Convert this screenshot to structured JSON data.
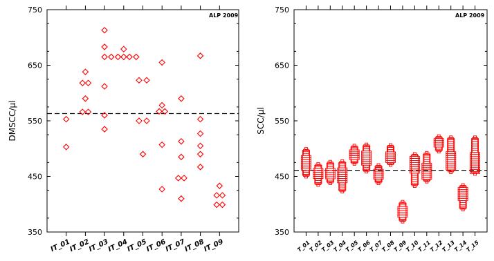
{
  "chart_data": [
    {
      "type": "scatter",
      "ylabel": "DMSCC/µl",
      "ylim": [
        350,
        750
      ],
      "yticks": [
        350,
        450,
        550,
        650,
        750
      ],
      "reference_line": 563,
      "annotation": "ALP 2009",
      "marker": "diamond",
      "color": "#ff0000",
      "categories": [
        "IT_01",
        "IT_02",
        "IT_03",
        "IT_04",
        "IT_05",
        "IT_06",
        "IT_07",
        "IT_08",
        "IT_09"
      ],
      "series": [
        {
          "category": "IT_01",
          "values": [
            [
              0,
              553
            ],
            [
              0,
              503
            ]
          ]
        },
        {
          "category": "IT_02",
          "values": [
            [
              -0.15,
              618
            ],
            [
              0,
              638
            ],
            [
              0.15,
              618
            ],
            [
              0,
              590
            ],
            [
              -0.15,
              566
            ],
            [
              0.15,
              566
            ]
          ]
        },
        {
          "category": "IT_03",
          "values": [
            [
              0,
              713
            ],
            [
              0,
              683
            ],
            [
              0,
              665
            ],
            [
              0.35,
              665
            ],
            [
              0,
              612
            ],
            [
              0,
              560
            ],
            [
              0,
              535
            ]
          ]
        },
        {
          "category": "IT_04",
          "values": [
            [
              -0.3,
              665
            ],
            [
              0,
              665
            ],
            [
              0.3,
              665
            ],
            [
              0,
              679
            ]
          ]
        },
        {
          "category": "IT_05",
          "values": [
            [
              -0.35,
              665
            ],
            [
              -0.2,
              623
            ],
            [
              0.2,
              623
            ],
            [
              -0.2,
              550
            ],
            [
              0.2,
              550
            ],
            [
              0,
              490
            ]
          ]
        },
        {
          "category": "IT_06",
          "values": [
            [
              0,
              655
            ],
            [
              0,
              578
            ],
            [
              -0.15,
              567
            ],
            [
              0.15,
              567
            ],
            [
              0,
              507
            ],
            [
              0,
              427
            ]
          ]
        },
        {
          "category": "IT_07",
          "values": [
            [
              0,
              590
            ],
            [
              0,
              513
            ],
            [
              0,
              485
            ],
            [
              -0.15,
              447
            ],
            [
              0.15,
              447
            ],
            [
              0,
              410
            ]
          ]
        },
        {
          "category": "IT_08",
          "values": [
            [
              0,
              667
            ],
            [
              0,
              553
            ],
            [
              0,
              527
            ],
            [
              0,
              505
            ],
            [
              0,
              490
            ],
            [
              0,
              467
            ]
          ]
        },
        {
          "category": "IT_09",
          "values": [
            [
              0,
              433
            ],
            [
              -0.15,
              416
            ],
            [
              0.15,
              416
            ],
            [
              -0.15,
              399
            ],
            [
              0.15,
              399
            ]
          ]
        }
      ]
    },
    {
      "type": "scatter",
      "ylabel": "SCC/µl",
      "ylim": [
        350,
        750
      ],
      "yticks": [
        350,
        450,
        550,
        650,
        750
      ],
      "reference_line": 461,
      "annotation": "ALP 2009",
      "marker": "square",
      "color": "#ff0000",
      "categories": [
        "T_01",
        "T_02",
        "T_03",
        "T_04",
        "T_05",
        "T_06",
        "T_07",
        "T_08",
        "T_09",
        "T_10",
        "T_11",
        "T_12",
        "T_13",
        "T_14",
        "T_15"
      ],
      "groups": [
        {
          "category": "T_01",
          "min": 452,
          "max": 497,
          "center": 475
        },
        {
          "category": "T_02",
          "min": 437,
          "max": 470,
          "center": 455
        },
        {
          "category": "T_03",
          "min": 440,
          "max": 474,
          "center": 455
        },
        {
          "category": "T_04",
          "min": 425,
          "max": 475,
          "center": 452
        },
        {
          "category": "T_05",
          "min": 475,
          "max": 503,
          "center": 488
        },
        {
          "category": "T_06",
          "min": 461,
          "max": 505,
          "center": 482
        },
        {
          "category": "T_07",
          "min": 440,
          "max": 468,
          "center": 455
        },
        {
          "category": "T_08",
          "min": 473,
          "max": 504,
          "center": 485
        },
        {
          "category": "T_09",
          "min": 371,
          "max": 402,
          "center": 385
        },
        {
          "category": "T_10",
          "min": 435,
          "max": 488,
          "center": 470
        },
        {
          "category": "T_11",
          "min": 443,
          "max": 490,
          "center": 458
        },
        {
          "category": "T_12",
          "min": 497,
          "max": 520,
          "center": 510
        },
        {
          "category": "T_13",
          "min": 460,
          "max": 518,
          "center": 478
        },
        {
          "category": "T_14",
          "min": 393,
          "max": 432,
          "center": 420
        },
        {
          "category": "T_15",
          "min": 457,
          "max": 518,
          "center": 475
        }
      ]
    }
  ]
}
